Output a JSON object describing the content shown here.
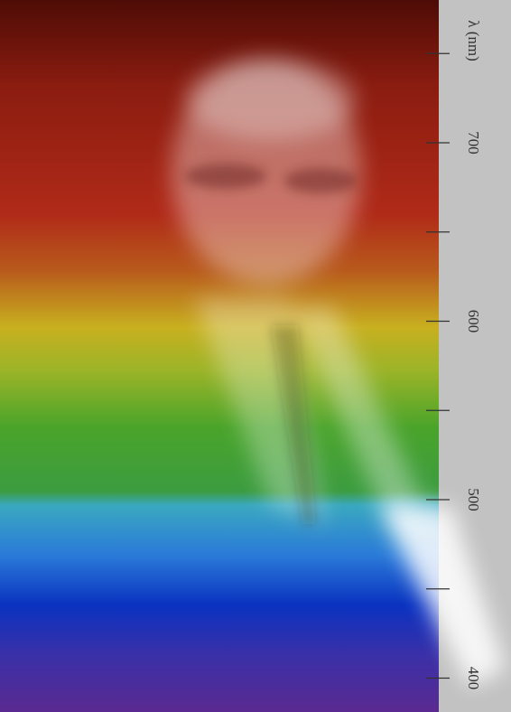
{
  "axis": {
    "label": "λ (nm)",
    "ylim": [
      381,
      780
    ],
    "ticks": [
      400,
      500,
      600,
      700
    ],
    "minor_ticks": [
      450,
      550,
      650,
      750
    ]
  }
}
